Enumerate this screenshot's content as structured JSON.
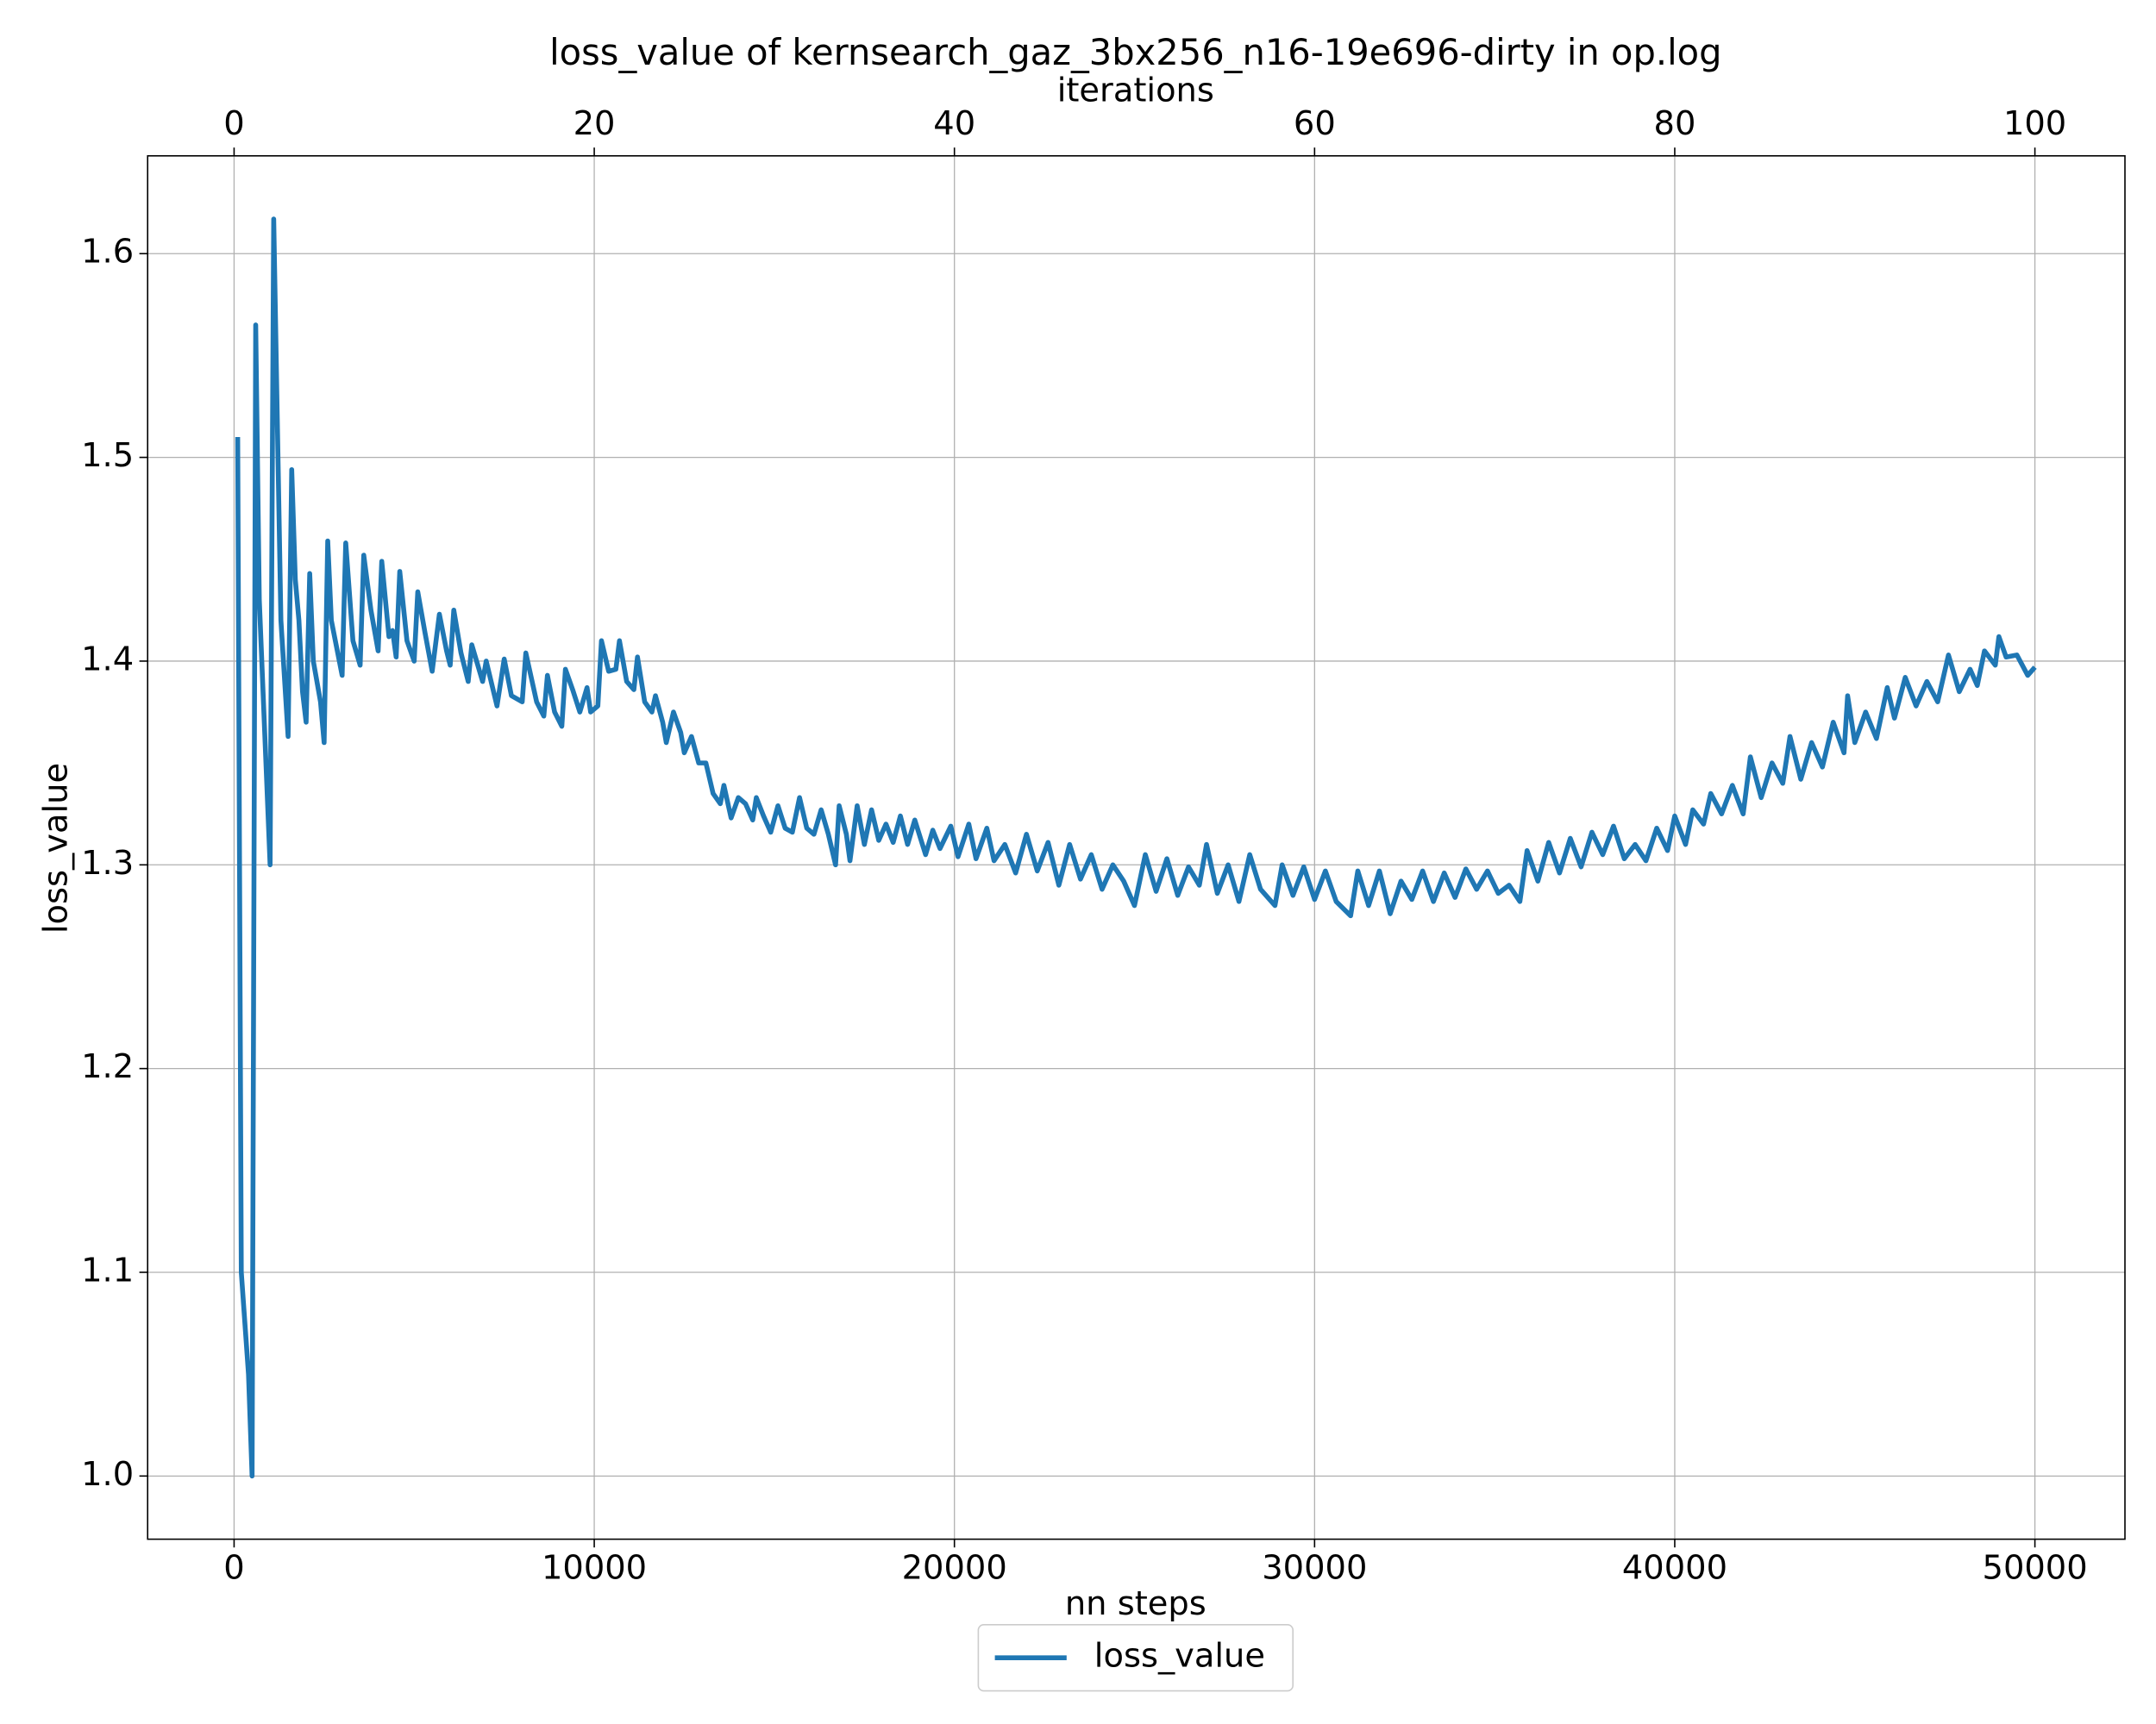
{
  "chart_data": {
    "type": "line",
    "title": "loss_value of kernsearch_gaz_3bx256_n16-19e696-dirty in op.log",
    "xlabel": "nn steps",
    "ylabel": "loss_value",
    "x2label": "iterations",
    "x": [
      100,
      200,
      400,
      500,
      600,
      700,
      1000,
      1100,
      1300,
      1500,
      1600,
      1700,
      1800,
      1900,
      2000,
      2100,
      2200,
      2400,
      2500,
      2600,
      2700,
      3000,
      3100,
      3300,
      3500,
      3600,
      3800,
      4000,
      4100,
      4300,
      4400,
      4500,
      4600,
      4800,
      5000,
      5100,
      5300,
      5500,
      5700,
      5900,
      6000,
      6100,
      6300,
      6500,
      6600,
      6900,
      7000,
      7300,
      7500,
      7700,
      8000,
      8100,
      8400,
      8600,
      8700,
      8900,
      9100,
      9200,
      9400,
      9600,
      9800,
      9900,
      10100,
      10200,
      10400,
      10600,
      10700,
      10900,
      11100,
      11200,
      11400,
      11600,
      11700,
      11900,
      12000,
      12200,
      12400,
      12500,
      12700,
      12900,
      13100,
      13300,
      13500,
      13600,
      13800,
      14000,
      14200,
      14400,
      14500,
      14700,
      14900,
      15100,
      15300,
      15500,
      15700,
      15900,
      16100,
      16300,
      16500,
      16700,
      16800,
      17000,
      17100,
      17300,
      17500,
      17700,
      17900,
      18100,
      18300,
      18500,
      18700,
      18900,
      19200,
      19400,
      19600,
      19900,
      20100,
      20400,
      20600,
      20900,
      21100,
      21400,
      21700,
      22000,
      22300,
      22600,
      22900,
      23200,
      23500,
      23800,
      24100,
      24400,
      24700,
      25000,
      25300,
      25600,
      25900,
      26200,
      26500,
      26800,
      27000,
      27300,
      27600,
      27900,
      28200,
      28500,
      28900,
      29100,
      29400,
      29700,
      30000,
      30300,
      30600,
      31000,
      31200,
      31500,
      31800,
      32100,
      32400,
      32700,
      33000,
      33300,
      33600,
      33900,
      34200,
      34500,
      34800,
      35100,
      35400,
      35700,
      35900,
      36200,
      36500,
      36800,
      37100,
      37400,
      37700,
      38000,
      38300,
      38600,
      38900,
      39200,
      39500,
      39800,
      40000,
      40300,
      40500,
      40800,
      41000,
      41300,
      41600,
      41900,
      42100,
      42400,
      42700,
      43000,
      43200,
      43500,
      43800,
      44100,
      44400,
      44700,
      44800,
      45000,
      45300,
      45600,
      45900,
      46100,
      46400,
      46700,
      47000,
      47300,
      47600,
      47900,
      48200,
      48400,
      48600,
      48900,
      49000,
      49200,
      49500,
      49800,
      50000
    ],
    "series": [
      {
        "name": "loss_value",
        "color": "#1f77b4",
        "values": [
          1.51,
          1.1,
          1.05,
          1.0,
          1.565,
          1.43,
          1.3,
          1.617,
          1.42,
          1.363,
          1.494,
          1.44,
          1.42,
          1.385,
          1.37,
          1.443,
          1.4,
          1.38,
          1.36,
          1.459,
          1.42,
          1.393,
          1.458,
          1.41,
          1.398,
          1.452,
          1.425,
          1.405,
          1.449,
          1.412,
          1.415,
          1.402,
          1.444,
          1.41,
          1.4,
          1.434,
          1.414,
          1.395,
          1.423,
          1.405,
          1.398,
          1.425,
          1.404,
          1.39,
          1.408,
          1.39,
          1.4,
          1.378,
          1.401,
          1.383,
          1.38,
          1.404,
          1.38,
          1.373,
          1.393,
          1.375,
          1.368,
          1.396,
          1.386,
          1.375,
          1.387,
          1.375,
          1.378,
          1.41,
          1.395,
          1.396,
          1.41,
          1.39,
          1.386,
          1.402,
          1.38,
          1.375,
          1.383,
          1.37,
          1.36,
          1.375,
          1.365,
          1.355,
          1.363,
          1.35,
          1.35,
          1.335,
          1.33,
          1.339,
          1.323,
          1.333,
          1.33,
          1.322,
          1.333,
          1.324,
          1.316,
          1.329,
          1.318,
          1.316,
          1.333,
          1.318,
          1.315,
          1.327,
          1.315,
          1.3,
          1.329,
          1.315,
          1.302,
          1.329,
          1.31,
          1.327,
          1.312,
          1.32,
          1.311,
          1.324,
          1.31,
          1.322,
          1.305,
          1.317,
          1.308,
          1.319,
          1.304,
          1.32,
          1.303,
          1.318,
          1.302,
          1.31,
          1.296,
          1.315,
          1.297,
          1.311,
          1.29,
          1.31,
          1.293,
          1.305,
          1.288,
          1.3,
          1.292,
          1.28,
          1.305,
          1.287,
          1.303,
          1.285,
          1.299,
          1.29,
          1.31,
          1.286,
          1.3,
          1.282,
          1.305,
          1.288,
          1.28,
          1.3,
          1.285,
          1.299,
          1.283,
          1.297,
          1.282,
          1.275,
          1.297,
          1.28,
          1.297,
          1.276,
          1.292,
          1.283,
          1.297,
          1.282,
          1.296,
          1.284,
          1.298,
          1.288,
          1.297,
          1.286,
          1.29,
          1.282,
          1.307,
          1.292,
          1.311,
          1.296,
          1.313,
          1.299,
          1.316,
          1.305,
          1.319,
          1.303,
          1.31,
          1.302,
          1.318,
          1.307,
          1.324,
          1.31,
          1.327,
          1.32,
          1.335,
          1.325,
          1.339,
          1.325,
          1.353,
          1.333,
          1.35,
          1.34,
          1.363,
          1.342,
          1.36,
          1.348,
          1.37,
          1.355,
          1.383,
          1.36,
          1.375,
          1.362,
          1.387,
          1.372,
          1.392,
          1.378,
          1.39,
          1.38,
          1.403,
          1.385,
          1.396,
          1.388,
          1.405,
          1.398,
          1.412,
          1.402,
          1.403,
          1.393,
          1.397
        ]
      }
    ],
    "xlim": [
      -2400,
      52500
    ],
    "xticks": [
      0,
      10000,
      20000,
      30000,
      40000,
      50000
    ],
    "x2lim": [
      -4.8,
      105
    ],
    "x2ticks": [
      0,
      20,
      40,
      60,
      80,
      100
    ],
    "ylim": [
      0.969,
      1.648
    ],
    "yticks": [
      {
        "value": 1,
        "label": "1.0"
      },
      1.1,
      1.2,
      1.3,
      1.4,
      1.5,
      1.6
    ],
    "grid": true,
    "legend": "bottom"
  }
}
